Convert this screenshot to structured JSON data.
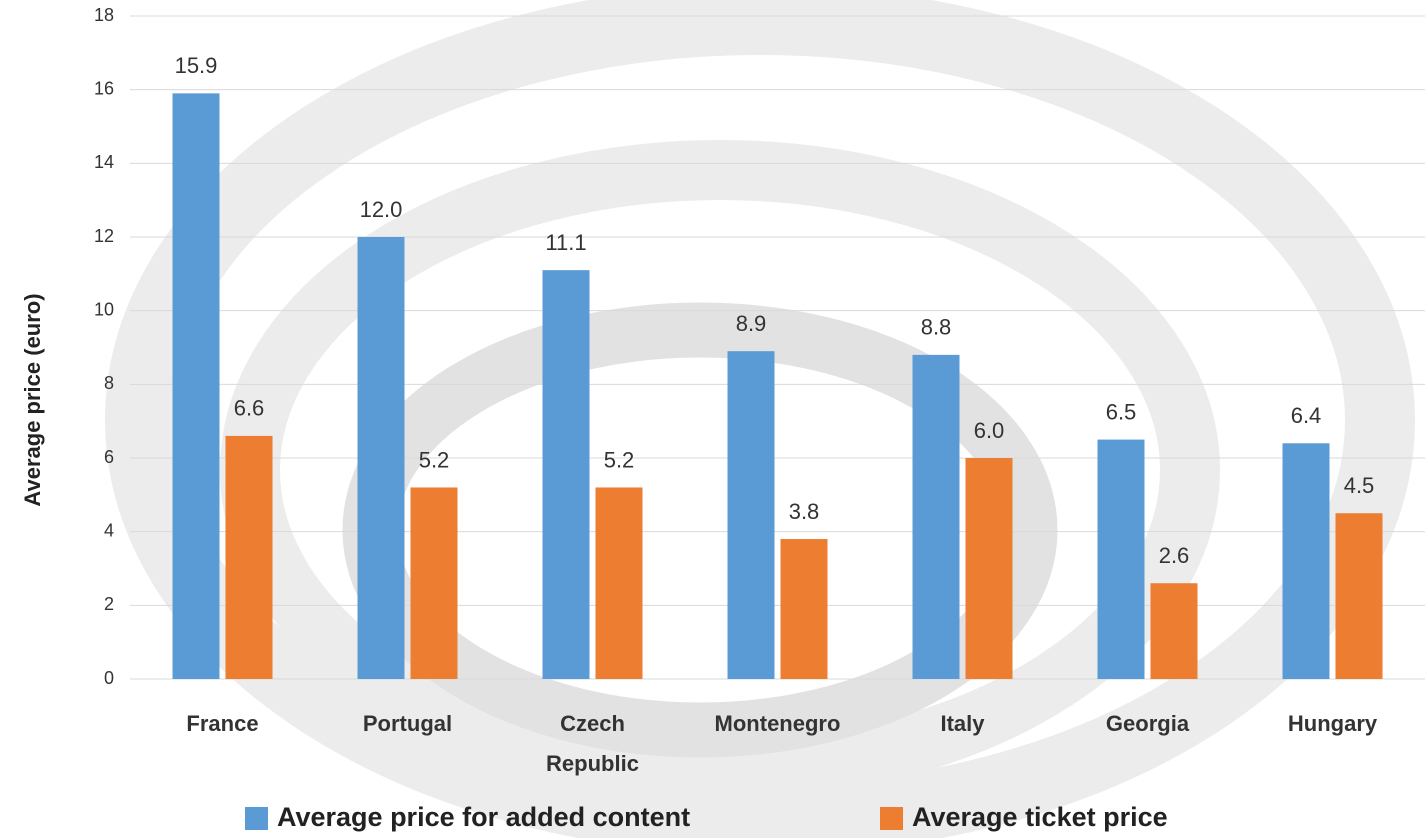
{
  "chart_data": {
    "type": "bar",
    "y_label": "Average price (euro)",
    "categories": [
      "France",
      "Portugal",
      "Czech Republic",
      "Montenegro",
      "Italy",
      "Georgia",
      "Hungary"
    ],
    "series": [
      {
        "name": "Average price for added content",
        "color": "#5b9bd5",
        "values": [
          15.9,
          12.0,
          11.1,
          8.9,
          8.8,
          6.5,
          6.4
        ],
        "value_labels": [
          "15.9",
          "12.0",
          "11.1",
          "8.9",
          "8.8",
          "6.5",
          "6.4"
        ]
      },
      {
        "name": "Average ticket price",
        "color": "#ed7d31",
        "values": [
          6.6,
          5.2,
          5.2,
          3.8,
          6.0,
          2.6,
          4.5
        ],
        "value_labels": [
          "6.6",
          "5.2",
          "5.2",
          "3.8",
          "6.0",
          "2.6",
          "4.5"
        ]
      }
    ],
    "ylim": [
      0,
      18
    ],
    "yticks": [
      0,
      2,
      4,
      6,
      8,
      10,
      12,
      14,
      16,
      18
    ],
    "grid": true,
    "legend": "bottom"
  }
}
